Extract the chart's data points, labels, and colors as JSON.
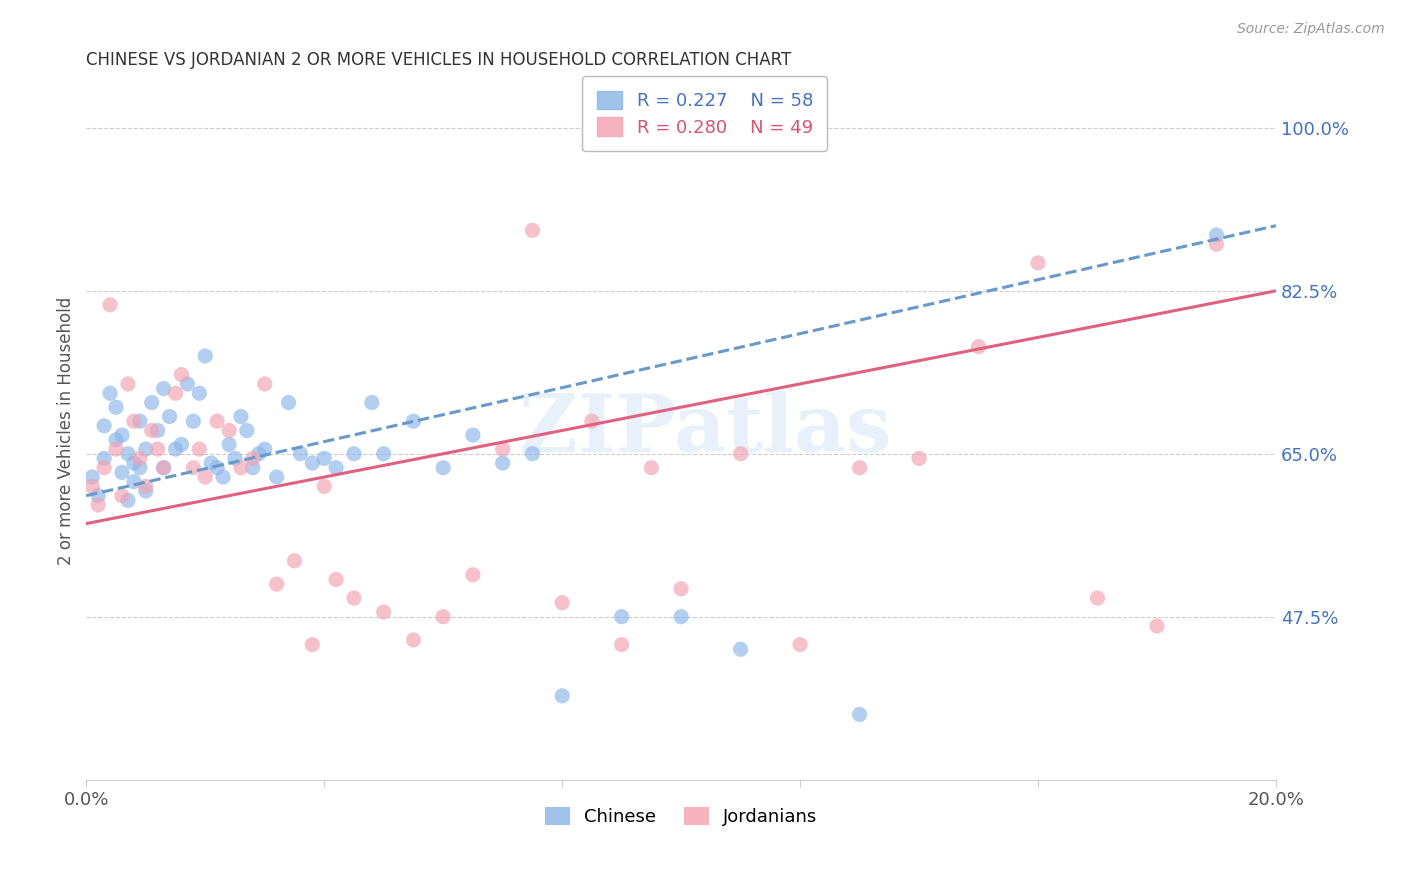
{
  "title": "CHINESE VS JORDANIAN 2 OR MORE VEHICLES IN HOUSEHOLD CORRELATION CHART",
  "source": "Source: ZipAtlas.com",
  "ylabel": "2 or more Vehicles in Household",
  "xlim": [
    0.0,
    0.2
  ],
  "ylim": [
    0.3,
    1.05
  ],
  "ytick_vals": [
    0.475,
    0.65,
    0.825,
    1.0
  ],
  "ytick_labels": [
    "47.5%",
    "65.0%",
    "82.5%",
    "100.0%"
  ],
  "xticks": [
    0.0,
    0.04,
    0.08,
    0.12,
    0.16,
    0.2
  ],
  "xtick_labels": [
    "0.0%",
    "",
    "",
    "",
    "",
    "20.0%"
  ],
  "grid_color": "#cccccc",
  "background_color": "#ffffff",
  "chinese_color": "#89b4e8",
  "jordanian_color": "#f4a0b0",
  "chinese_line_color": "#6699cc",
  "jordanian_line_color": "#e06080",
  "chinese_R": 0.227,
  "chinese_N": 58,
  "jordanian_R": 0.28,
  "jordanian_N": 49,
  "watermark": "ZIPatlas",
  "chinese_x": [
    0.001,
    0.002,
    0.003,
    0.003,
    0.004,
    0.005,
    0.005,
    0.006,
    0.006,
    0.007,
    0.007,
    0.008,
    0.008,
    0.009,
    0.009,
    0.01,
    0.01,
    0.011,
    0.012,
    0.013,
    0.013,
    0.014,
    0.015,
    0.016,
    0.017,
    0.018,
    0.019,
    0.02,
    0.021,
    0.022,
    0.023,
    0.024,
    0.025,
    0.026,
    0.027,
    0.028,
    0.029,
    0.03,
    0.032,
    0.034,
    0.036,
    0.038,
    0.04,
    0.042,
    0.045,
    0.048,
    0.05,
    0.055,
    0.06,
    0.065,
    0.07,
    0.075,
    0.08,
    0.09,
    0.1,
    0.11,
    0.13,
    0.19
  ],
  "chinese_y": [
    0.625,
    0.605,
    0.645,
    0.68,
    0.715,
    0.665,
    0.7,
    0.63,
    0.67,
    0.6,
    0.65,
    0.62,
    0.64,
    0.685,
    0.635,
    0.61,
    0.655,
    0.705,
    0.675,
    0.635,
    0.72,
    0.69,
    0.655,
    0.66,
    0.725,
    0.685,
    0.715,
    0.755,
    0.64,
    0.635,
    0.625,
    0.66,
    0.645,
    0.69,
    0.675,
    0.635,
    0.65,
    0.655,
    0.625,
    0.705,
    0.65,
    0.64,
    0.645,
    0.635,
    0.65,
    0.705,
    0.65,
    0.685,
    0.635,
    0.67,
    0.64,
    0.65,
    0.39,
    0.475,
    0.475,
    0.44,
    0.37,
    0.885
  ],
  "jordanian_x": [
    0.001,
    0.002,
    0.003,
    0.004,
    0.005,
    0.006,
    0.007,
    0.008,
    0.009,
    0.01,
    0.011,
    0.012,
    0.013,
    0.015,
    0.016,
    0.018,
    0.019,
    0.02,
    0.022,
    0.024,
    0.026,
    0.028,
    0.03,
    0.032,
    0.035,
    0.038,
    0.04,
    0.042,
    0.045,
    0.05,
    0.055,
    0.06,
    0.065,
    0.07,
    0.075,
    0.08,
    0.085,
    0.09,
    0.095,
    0.1,
    0.11,
    0.12,
    0.13,
    0.14,
    0.15,
    0.16,
    0.17,
    0.18,
    0.19
  ],
  "jordanian_y": [
    0.615,
    0.595,
    0.635,
    0.81,
    0.655,
    0.605,
    0.725,
    0.685,
    0.645,
    0.615,
    0.675,
    0.655,
    0.635,
    0.715,
    0.735,
    0.635,
    0.655,
    0.625,
    0.685,
    0.675,
    0.635,
    0.645,
    0.725,
    0.51,
    0.535,
    0.445,
    0.615,
    0.515,
    0.495,
    0.48,
    0.45,
    0.475,
    0.52,
    0.655,
    0.89,
    0.49,
    0.685,
    0.445,
    0.635,
    0.505,
    0.65,
    0.445,
    0.635,
    0.645,
    0.765,
    0.855,
    0.495,
    0.465,
    0.875
  ],
  "trend_chinese_x0": 0.0,
  "trend_chinese_y0": 0.605,
  "trend_chinese_x1": 0.2,
  "trend_chinese_y1": 0.895,
  "trend_jordanian_x0": 0.0,
  "trend_jordanian_y0": 0.575,
  "trend_jordanian_x1": 0.2,
  "trend_jordanian_y1": 0.825
}
